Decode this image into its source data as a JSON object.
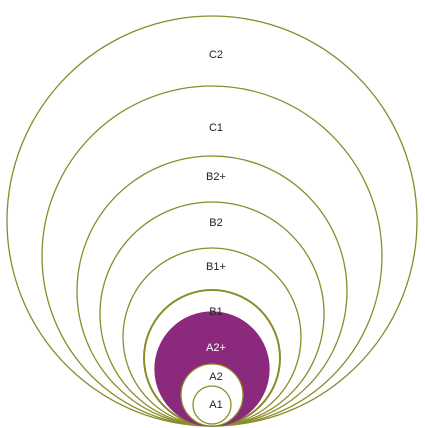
{
  "diagram": {
    "colors": {
      "ring_stroke": "#8a8c2a",
      "highlight_fill": "#8b2a7c",
      "background": "#ffffff"
    },
    "levels": [
      {
        "label": "C2",
        "highlighted": false
      },
      {
        "label": "C1",
        "highlighted": false
      },
      {
        "label": "B2+",
        "highlighted": false
      },
      {
        "label": "B2",
        "highlighted": false
      },
      {
        "label": "B1+",
        "highlighted": false
      },
      {
        "label": "B1",
        "highlighted": false
      },
      {
        "label": "A2+",
        "highlighted": true
      },
      {
        "label": "A2",
        "highlighted": false
      },
      {
        "label": "A1",
        "highlighted": false
      }
    ]
  }
}
